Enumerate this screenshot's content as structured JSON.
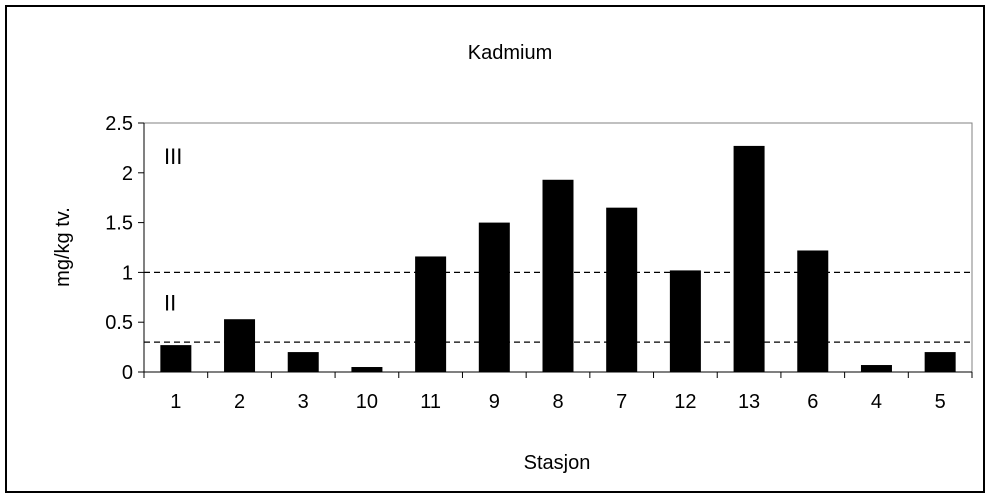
{
  "chart_data": {
    "type": "bar",
    "title": "Kadmium",
    "xlabel": "Stasjon",
    "ylabel": "mg/kg tv.",
    "categories": [
      "1",
      "2",
      "3",
      "10",
      "11",
      "9",
      "8",
      "7",
      "12",
      "13",
      "6",
      "4",
      "5"
    ],
    "values": [
      0.27,
      0.53,
      0.2,
      0.05,
      1.16,
      1.5,
      1.93,
      1.65,
      1.02,
      2.27,
      1.22,
      0.07,
      0.2
    ],
    "ylim": [
      0,
      2.5
    ],
    "yticks": [
      "0",
      "0.5",
      "1",
      "1.5",
      "2",
      "2.5"
    ],
    "ytick_values": [
      0,
      0.5,
      1,
      1.5,
      2,
      2.5
    ],
    "reference_lines": [
      0.3,
      1.0
    ],
    "class_labels": [
      {
        "text": "III",
        "y": 2.15
      },
      {
        "text": "II",
        "y": 0.68
      }
    ],
    "grid": false,
    "legend": "none",
    "bar_color": "#000000",
    "line_color": "#000000"
  }
}
